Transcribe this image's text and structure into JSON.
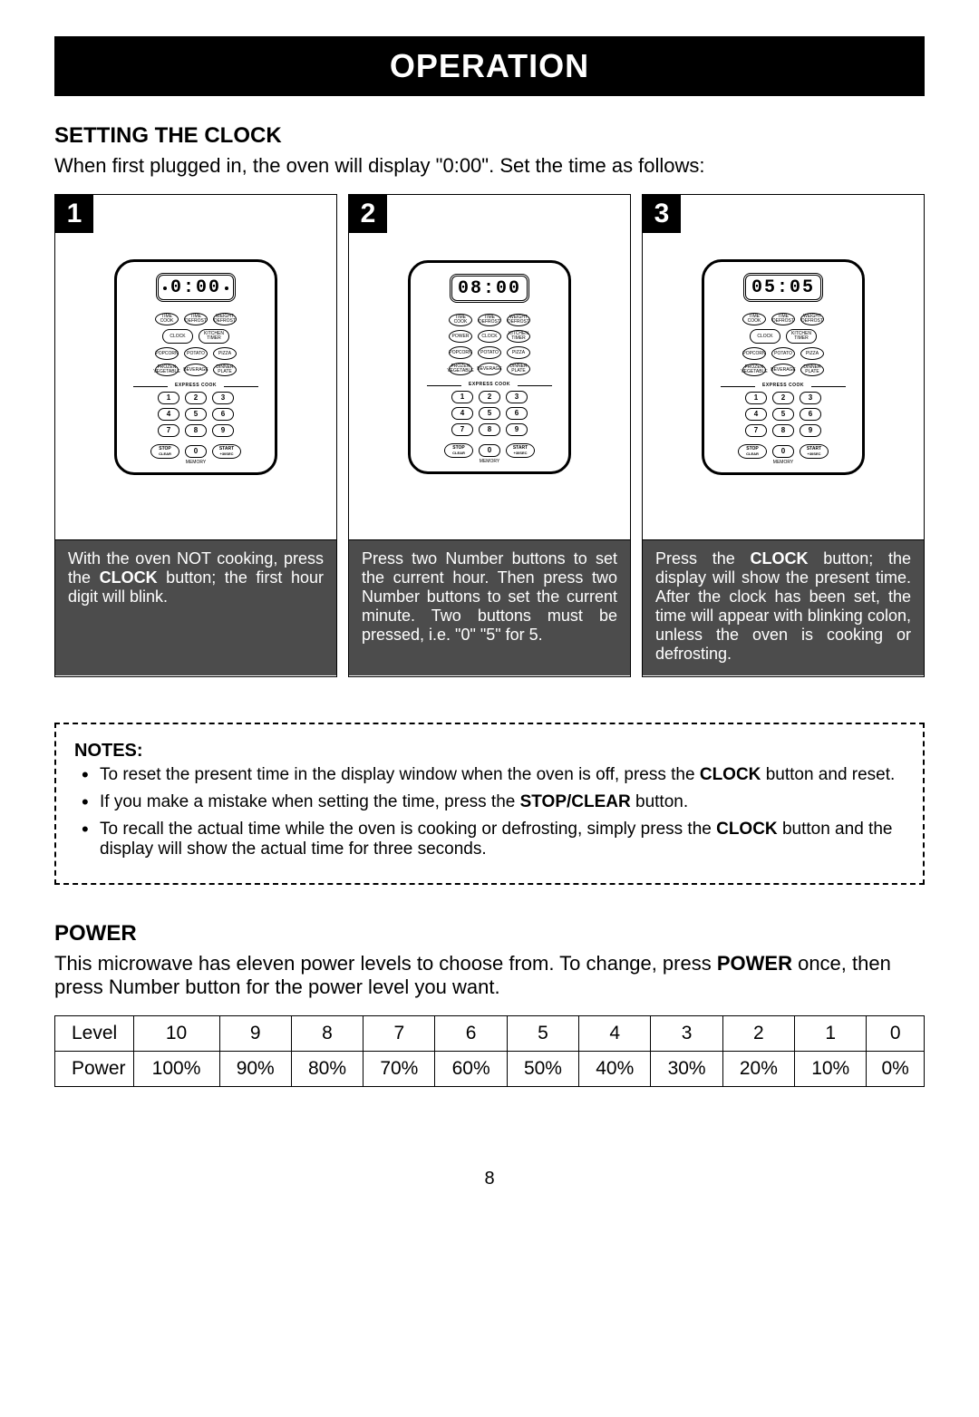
{
  "header": {
    "title": "OPERATION"
  },
  "setting_clock": {
    "heading": "SETTING THE CLOCK",
    "intro": "When first plugged in, the oven will display \"0:00\". Set the time as follows:"
  },
  "panel_buttons": {
    "row1": [
      "TIME\nCOOK",
      "TIME\nDEFROST",
      "WEIGHT\nDEFROST"
    ],
    "row2_2btn": [
      "CLOCK",
      "KITCHEN\nTIMER"
    ],
    "row2_3btn": [
      "POWER",
      "CLOCK",
      "KITCHEN\nTIMER"
    ],
    "row3": [
      "POPCORN",
      "POTATO",
      "PIZZA"
    ],
    "row4": [
      "FROZEN\nVEGETABLE",
      "BEVERAGE",
      "DINNER\nPLATE"
    ],
    "express": "EXPRESS COOK",
    "nums": [
      "1",
      "2",
      "3",
      "4",
      "5",
      "6",
      "7",
      "8",
      "9",
      "0"
    ],
    "stop": "STOP",
    "stop_sub": "CLEAR",
    "start": "START",
    "start_sub": "+30SEC",
    "memory": "MEMORY"
  },
  "steps": [
    {
      "num": "1",
      "display": "0:00",
      "row2_three": false,
      "caption_html": "With the oven NOT cooking, press the <b>CLOCK</b> button; the first hour digit will blink."
    },
    {
      "num": "2",
      "display": "08:00",
      "row2_three": true,
      "caption_html": "Press two Number buttons to set the current hour. Then press two Number buttons to set the current minute. Two buttons must be pressed, i.e. \"0\" \"5\" for 5."
    },
    {
      "num": "3",
      "display": "05:05",
      "row2_three": false,
      "caption_html": "Press the <b>CLOCK</b> button; the display will show the present time. After the clock has been set, the time will appear with blinking colon, unless the oven is cooking or defrosting."
    }
  ],
  "notes": {
    "title": "NOTES:",
    "items": [
      "To reset the present time in the display window when the oven is off, press the <b>CLOCK</b> button and reset.",
      "If you make a mistake when setting the time, press the <b>STOP/CLEAR</b> button.",
      "To recall the actual time while the oven is cooking or defrosting, simply press the <b>CLOCK</b> button and the display will show the actual time for three seconds."
    ]
  },
  "power": {
    "heading": "POWER",
    "intro_html": "This microwave has eleven power levels to choose from. To change, press <b>POWER</b> once, then press Number button for the power level you want.",
    "table": {
      "row_labels": [
        "Level",
        "Power"
      ],
      "levels": [
        "10",
        "9",
        "8",
        "7",
        "6",
        "5",
        "4",
        "3",
        "2",
        "1",
        "0"
      ],
      "powers": [
        "100%",
        "90%",
        "80%",
        "70%",
        "60%",
        "50%",
        "40%",
        "30%",
        "20%",
        "10%",
        "0%"
      ]
    }
  },
  "page_number": "8"
}
